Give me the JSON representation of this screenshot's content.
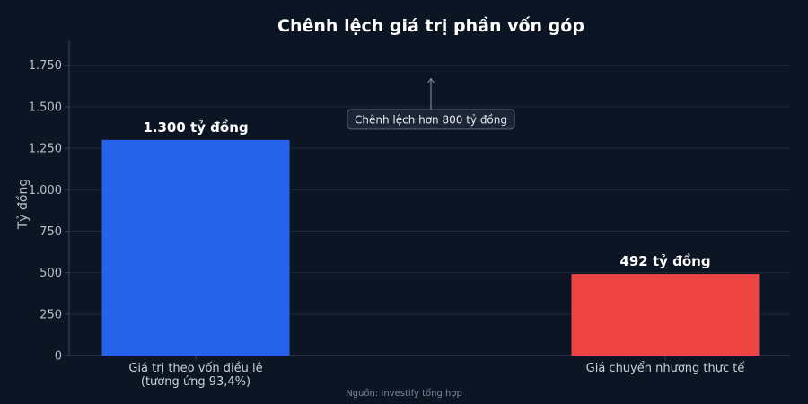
{
  "chart_data": {
    "type": "bar",
    "title": "Chênh lệch giá trị phần vốn góp",
    "ylabel": "Tỷ đồng",
    "xlabel": "",
    "ylim": [
      0,
      1900
    ],
    "yticks": [
      0,
      250,
      500,
      750,
      1000,
      1250,
      1500,
      1750
    ],
    "ytick_labels": [
      "0",
      "250",
      "500",
      "750",
      "1.000",
      "1.250",
      "1.500",
      "1.750"
    ],
    "grid": true,
    "categories": [
      [
        "Giá trị theo vốn điều lệ",
        "(tương ứng 93,4%)"
      ],
      [
        "Giá chuyển nhượng thực tế"
      ]
    ],
    "values": [
      1300,
      492
    ],
    "value_labels": [
      "1.300 tỷ đồng",
      "492 tỷ đồng"
    ],
    "colors": [
      "#2563eb",
      "#ef4444"
    ],
    "annotation": {
      "text": "Chênh lệch hơn 800 tỷ đồng",
      "arrow_from_value": 1500,
      "arrow_to_value": 1670
    },
    "source": "Nguồn: Investify tổng hợp"
  }
}
